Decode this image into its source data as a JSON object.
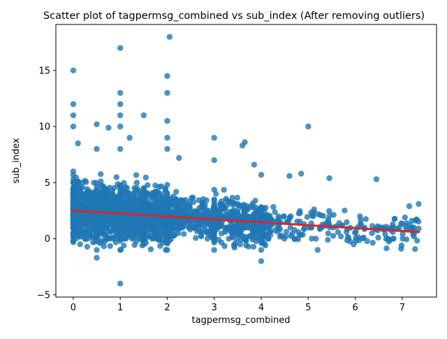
{
  "chart_data": {
    "type": "scatter",
    "title": "Scatter plot of tagpermsg_combined vs sub_index (After removing outliers)",
    "xlabel": "tagpermsg_combined",
    "ylabel": "sub_index",
    "xlim": [
      -0.37,
      7.73
    ],
    "ylim": [
      -5.2,
      19.1
    ],
    "xticks": [
      0,
      1,
      2,
      3,
      4,
      5,
      6,
      7
    ],
    "yticks": [
      -5,
      0,
      5,
      10,
      15
    ],
    "grid": false,
    "legend": "none",
    "point_color": "#1f77b4",
    "regression_color": "#d62728",
    "regression_line": {
      "x": [
        0,
        7.35
      ],
      "y": [
        2.5,
        0.6
      ]
    },
    "notable_points": [
      {
        "x": 0,
        "y": 15
      },
      {
        "x": 0,
        "y": 12
      },
      {
        "x": 0,
        "y": 11
      },
      {
        "x": 0,
        "y": 10
      },
      {
        "x": 0.1,
        "y": 8.5
      },
      {
        "x": 0.5,
        "y": 10.2
      },
      {
        "x": 0.5,
        "y": 8
      },
      {
        "x": 0.5,
        "y": -1
      },
      {
        "x": 0.5,
        "y": -1.7
      },
      {
        "x": 0.75,
        "y": 9.9
      },
      {
        "x": 1,
        "y": 17
      },
      {
        "x": 1,
        "y": 13
      },
      {
        "x": 1,
        "y": 12
      },
      {
        "x": 1,
        "y": 11
      },
      {
        "x": 1,
        "y": 10
      },
      {
        "x": 1,
        "y": 8
      },
      {
        "x": 1,
        "y": -1
      },
      {
        "x": 1,
        "y": -4
      },
      {
        "x": 1.2,
        "y": 9
      },
      {
        "x": 1.5,
        "y": 11
      },
      {
        "x": 1.5,
        "y": -0.5
      },
      {
        "x": 2,
        "y": 14.5
      },
      {
        "x": 2,
        "y": 13
      },
      {
        "x": 2,
        "y": 10.5
      },
      {
        "x": 2,
        "y": 9
      },
      {
        "x": 2,
        "y": 8
      },
      {
        "x": 2,
        "y": -1
      },
      {
        "x": 2.05,
        "y": 18
      },
      {
        "x": 2.25,
        "y": 7.2
      },
      {
        "x": 3,
        "y": 9
      },
      {
        "x": 3,
        "y": 7
      },
      {
        "x": 3,
        "y": -1
      },
      {
        "x": 3.6,
        "y": 8.3
      },
      {
        "x": 3.65,
        "y": 8.6
      },
      {
        "x": 3.85,
        "y": 6.6
      },
      {
        "x": 4,
        "y": 5.7
      },
      {
        "x": 4,
        "y": -1
      },
      {
        "x": 4,
        "y": -2
      },
      {
        "x": 4.6,
        "y": 5.6
      },
      {
        "x": 4.85,
        "y": 5.8
      },
      {
        "x": 5,
        "y": 10
      },
      {
        "x": 5.2,
        "y": -1
      },
      {
        "x": 5.45,
        "y": 5.4
      },
      {
        "x": 6.45,
        "y": 5.3
      },
      {
        "x": 7.15,
        "y": 2.9
      },
      {
        "x": 7.35,
        "y": 3.1
      },
      {
        "x": 7.35,
        "y": 0.9
      },
      {
        "x": 7.25,
        "y": 0.2
      }
    ]
  }
}
